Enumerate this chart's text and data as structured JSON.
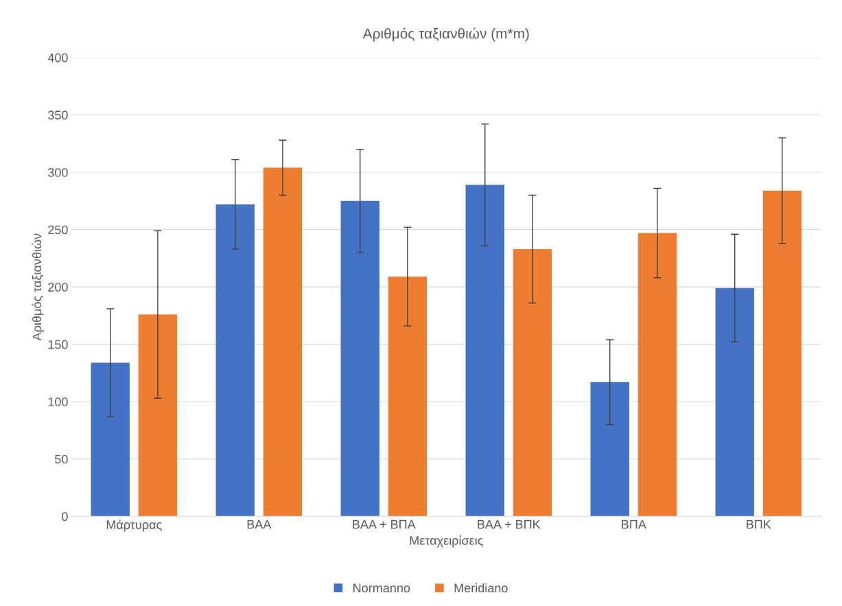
{
  "chart_data": {
    "type": "bar",
    "title": "Αριθμός ταξιανθιών (m*m)",
    "xlabel": "Μεταχειρίσεις",
    "ylabel": "Αριθμός ταξιανθιών",
    "categories": [
      "Μάρτυρας",
      "ΒΑΑ",
      "ΒΑΑ + ΒΠΑ",
      "ΒΑΑ + ΒΠΚ",
      "ΒΠΑ",
      "ΒΠΚ"
    ],
    "series": [
      {
        "name": "Normanno",
        "color": "#4472c4",
        "values": [
          134,
          272,
          275,
          289,
          117,
          199
        ],
        "errors": [
          47,
          39,
          45,
          53,
          37,
          47
        ]
      },
      {
        "name": "Meridiano",
        "color": "#ed7d31",
        "values": [
          176,
          304,
          209,
          233,
          247,
          284
        ],
        "errors": [
          73,
          24,
          43,
          47,
          39,
          46
        ]
      }
    ],
    "ylim": [
      0,
      400
    ],
    "yticks": [
      0,
      50,
      100,
      150,
      200,
      250,
      300,
      350,
      400
    ],
    "grid": "y",
    "legend": "bottom"
  }
}
